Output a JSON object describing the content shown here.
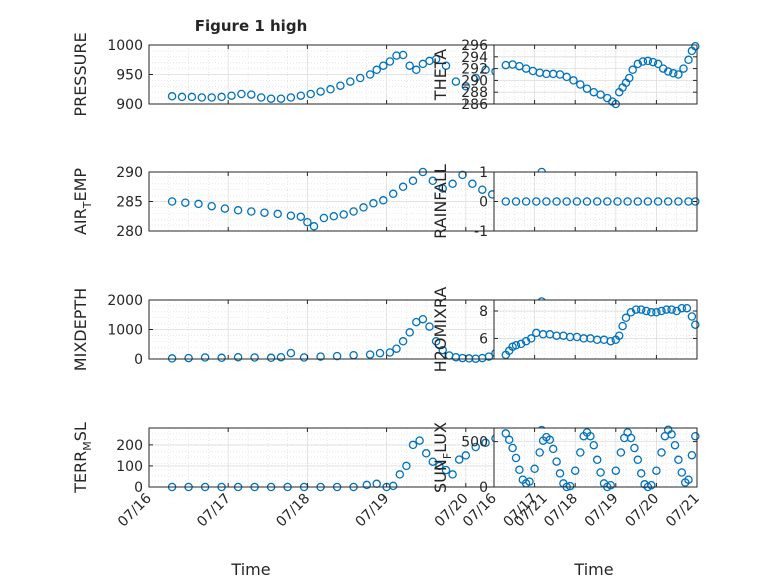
{
  "figure": {
    "title": "Figure 1 high",
    "marker_color": "#0072BD"
  },
  "chart_data": [
    {
      "id": "pressure",
      "type": "scatter",
      "ylabel": "PRESSURE",
      "grid": true,
      "xlim": [
        "07/16",
        "07/21"
      ],
      "xticks": [
        "07/16",
        "07/17",
        "07/18",
        "07/19",
        "07/20",
        "07/21"
      ],
      "ylim": [
        900,
        1000
      ],
      "yticks": [
        900,
        950,
        1000
      ],
      "x": [
        "07/16 07:00",
        "07/16 10:00",
        "07/16 13:00",
        "07/16 16:00",
        "07/16 19:00",
        "07/16 22:00",
        "07/17 01:00",
        "07/17 04:00",
        "07/17 07:00",
        "07/17 10:00",
        "07/17 13:00",
        "07/17 16:00",
        "07/17 19:00",
        "07/17 22:00",
        "07/18 01:00",
        "07/18 04:00",
        "07/18 07:00",
        "07/18 10:00",
        "07/18 13:00",
        "07/18 16:00",
        "07/18 19:00",
        "07/18 21:00",
        "07/18 23:00",
        "07/19 01:00",
        "07/19 03:00",
        "07/19 05:00",
        "07/19 07:00",
        "07/19 09:00",
        "07/19 11:00",
        "07/19 13:00",
        "07/19 15:00",
        "07/19 18:00",
        "07/19 21:00",
        "07/20 00:00",
        "07/20 03:00",
        "07/20 06:00",
        "07/20 09:00",
        "07/20 12:00",
        "07/20 15:00",
        "07/20 18:00",
        "07/20 21:00"
      ],
      "y": [
        913,
        912,
        912,
        911,
        911,
        912,
        914,
        917,
        916,
        911,
        909,
        909,
        911,
        914,
        917,
        921,
        925,
        931,
        938,
        944,
        950,
        958,
        965,
        972,
        982,
        983,
        965,
        958,
        968,
        973,
        976,
        965,
        938,
        930,
        944,
        958,
        955,
        946,
        938,
        935,
        930
      ]
    },
    {
      "id": "theta",
      "type": "scatter",
      "ylabel": "THETA",
      "grid": true,
      "xlim": [
        "07/16",
        "07/21"
      ],
      "xticks": [
        "07/16",
        "07/17",
        "07/18",
        "07/19",
        "07/20",
        "07/21"
      ],
      "ylim": [
        286,
        296
      ],
      "yticks": [
        286,
        288,
        290,
        292,
        294,
        296
      ],
      "x": [
        "07/16 07:00",
        "07/16 11:00",
        "07/16 15:00",
        "07/16 19:00",
        "07/16 23:00",
        "07/17 03:00",
        "07/17 07:00",
        "07/17 11:00",
        "07/17 15:00",
        "07/17 19:00",
        "07/17 23:00",
        "07/18 03:00",
        "07/18 07:00",
        "07/18 11:00",
        "07/18 15:00",
        "07/18 19:00",
        "07/18 22:00",
        "07/19 00:00",
        "07/19 02:00",
        "07/19 04:00",
        "07/19 06:00",
        "07/19 08:00",
        "07/19 10:00",
        "07/19 13:00",
        "07/19 16:00",
        "07/19 19:00",
        "07/19 22:00",
        "07/20 01:00",
        "07/20 04:00",
        "07/20 07:00",
        "07/20 10:00",
        "07/20 13:00",
        "07/20 16:00",
        "07/20 19:00",
        "07/20 21:00",
        "07/20 23:00"
      ],
      "y": [
        292.6,
        292.7,
        292.4,
        292.0,
        291.6,
        291.3,
        291.1,
        291.1,
        291.0,
        290.6,
        290.0,
        289.3,
        288.6,
        288.0,
        287.6,
        287.0,
        286.4,
        286.0,
        288.0,
        288.8,
        289.6,
        290.4,
        291.8,
        292.8,
        293.2,
        293.3,
        293.1,
        292.8,
        292.0,
        291.5,
        291.2,
        291.0,
        292.0,
        293.5,
        295.0,
        295.8
      ]
    },
    {
      "id": "air_temp",
      "type": "scatter",
      "ylabel": "AIR_TEMP",
      "ylabel_parts": [
        "AIR",
        "T",
        "EMP"
      ],
      "grid": true,
      "xlim": [
        "07/16",
        "07/21"
      ],
      "xticks": [
        "07/16",
        "07/17",
        "07/18",
        "07/19",
        "07/20",
        "07/21"
      ],
      "ylim": [
        280,
        290
      ],
      "yticks": [
        280,
        285,
        290
      ],
      "x": [
        "07/16 07:00",
        "07/16 11:00",
        "07/16 15:00",
        "07/16 19:00",
        "07/16 23:00",
        "07/17 03:00",
        "07/17 07:00",
        "07/17 11:00",
        "07/17 15:00",
        "07/17 19:00",
        "07/17 22:00",
        "07/18 00:00",
        "07/18 02:00",
        "07/18 05:00",
        "07/18 08:00",
        "07/18 11:00",
        "07/18 14:00",
        "07/18 17:00",
        "07/18 20:00",
        "07/18 23:00",
        "07/19 02:00",
        "07/19 05:00",
        "07/19 08:00",
        "07/19 11:00",
        "07/19 14:00",
        "07/19 17:00",
        "07/19 20:00",
        "07/19 23:00",
        "07/20 02:00",
        "07/20 05:00",
        "07/20 08:00",
        "07/20 11:00",
        "07/20 14:00",
        "07/20 17:00",
        "07/20 20:00",
        "07/20 23:00"
      ],
      "y": [
        285.0,
        284.8,
        284.6,
        284.2,
        283.8,
        283.5,
        283.3,
        283.1,
        282.9,
        282.6,
        282.4,
        281.5,
        280.8,
        282.2,
        282.5,
        282.8,
        283.3,
        284.0,
        284.7,
        285.2,
        286.3,
        287.5,
        288.5,
        290.0,
        288.5,
        287.2,
        288.0,
        289.5,
        288.0,
        287.0,
        286.2,
        285.8,
        286.5,
        288.0,
        289.3,
        290.0
      ]
    },
    {
      "id": "rainfall",
      "type": "scatter",
      "ylabel": "RAINFALL",
      "grid": true,
      "xlim": [
        "07/16",
        "07/21"
      ],
      "xticks": [
        "07/16",
        "07/17",
        "07/18",
        "07/19",
        "07/20",
        "07/21"
      ],
      "ylim": [
        -1,
        1
      ],
      "yticks": [
        -1,
        0,
        1
      ],
      "x": [
        "07/16 07:00",
        "07/16 13:00",
        "07/16 19:00",
        "07/17 01:00",
        "07/17 07:00",
        "07/17 13:00",
        "07/17 19:00",
        "07/18 01:00",
        "07/18 07:00",
        "07/18 13:00",
        "07/18 19:00",
        "07/19 01:00",
        "07/19 07:00",
        "07/19 13:00",
        "07/19 19:00",
        "07/20 01:00",
        "07/20 07:00",
        "07/20 13:00",
        "07/20 19:00",
        "07/20 23:00"
      ],
      "y": [
        0,
        0,
        0,
        0,
        0,
        0,
        0,
        0,
        0,
        0,
        0,
        0,
        0,
        0,
        0,
        0,
        0,
        0,
        0,
        0
      ]
    },
    {
      "id": "mixdepth",
      "type": "scatter",
      "ylabel": "MIXDEPTH",
      "grid": true,
      "xlim": [
        "07/16",
        "07/21"
      ],
      "xticks": [
        "07/16",
        "07/17",
        "07/18",
        "07/19",
        "07/20",
        "07/21"
      ],
      "ylim": [
        0,
        2000
      ],
      "yticks": [
        0,
        1000,
        2000
      ],
      "x": [
        "07/16 07:00",
        "07/16 12:00",
        "07/16 17:00",
        "07/16 22:00",
        "07/17 03:00",
        "07/17 08:00",
        "07/17 13:00",
        "07/17 16:00",
        "07/17 19:00",
        "07/17 23:00",
        "07/18 04:00",
        "07/18 09:00",
        "07/18 14:00",
        "07/18 19:00",
        "07/18 22:00",
        "07/19 01:00",
        "07/19 03:00",
        "07/19 05:00",
        "07/19 07:00",
        "07/19 09:00",
        "07/19 11:00",
        "07/19 13:00",
        "07/19 15:00",
        "07/19 17:00",
        "07/19 19:00",
        "07/19 21:00",
        "07/19 23:00",
        "07/20 01:00",
        "07/20 03:00",
        "07/20 05:00",
        "07/20 07:00",
        "07/20 09:00",
        "07/20 11:00",
        "07/20 13:00",
        "07/20 15:00",
        "07/20 17:00",
        "07/20 19:00",
        "07/20 21:00",
        "07/20 23:00"
      ],
      "y": [
        20,
        30,
        50,
        40,
        60,
        50,
        40,
        60,
        200,
        50,
        80,
        100,
        130,
        150,
        200,
        220,
        350,
        600,
        900,
        1250,
        1350,
        1100,
        600,
        300,
        120,
        60,
        30,
        20,
        10,
        30,
        80,
        200,
        400,
        700,
        1000,
        1300,
        1600,
        1800,
        1950
      ]
    },
    {
      "id": "h2omixra",
      "type": "scatter",
      "ylabel": "H2OMIXRA",
      "grid": true,
      "xlim": [
        "07/16",
        "07/21"
      ],
      "xticks": [
        "07/16",
        "07/17",
        "07/18",
        "07/19",
        "07/20",
        "07/21"
      ],
      "ylim": [
        4.5,
        8.8
      ],
      "yticks": [
        6,
        8
      ],
      "x": [
        "07/16 07:00",
        "07/16 09:00",
        "07/16 11:00",
        "07/16 13:00",
        "07/16 16:00",
        "07/16 19:00",
        "07/16 22:00",
        "07/17 01:00",
        "07/17 05:00",
        "07/17 09:00",
        "07/17 13:00",
        "07/17 17:00",
        "07/17 21:00",
        "07/18 01:00",
        "07/18 05:00",
        "07/18 09:00",
        "07/18 13:00",
        "07/18 17:00",
        "07/18 21:00",
        "07/19 00:00",
        "07/19 02:00",
        "07/19 04:00",
        "07/19 06:00",
        "07/19 09:00",
        "07/19 12:00",
        "07/19 15:00",
        "07/19 18:00",
        "07/19 21:00",
        "07/20 00:00",
        "07/20 03:00",
        "07/20 06:00",
        "07/20 09:00",
        "07/20 12:00",
        "07/20 15:00",
        "07/20 18:00",
        "07/20 21:00",
        "07/20 23:00"
      ],
      "y": [
        4.8,
        5.1,
        5.4,
        5.5,
        5.6,
        5.8,
        6.0,
        6.4,
        6.3,
        6.3,
        6.2,
        6.2,
        6.1,
        6.1,
        6.0,
        6.0,
        5.9,
        5.9,
        5.8,
        5.9,
        6.2,
        6.9,
        7.5,
        7.9,
        8.1,
        8.1,
        8.0,
        7.9,
        7.9,
        8.0,
        8.1,
        8.1,
        8.0,
        8.2,
        8.2,
        7.6,
        7.0
      ]
    },
    {
      "id": "terr_msl",
      "type": "scatter",
      "ylabel": "TERR_MSL",
      "ylabel_parts": [
        "TERR",
        "M",
        "SL"
      ],
      "grid": true,
      "xlim": [
        "07/16",
        "07/21"
      ],
      "xticks": [
        "07/16",
        "07/17",
        "07/18",
        "07/19",
        "07/20",
        "07/21"
      ],
      "ylim": [
        0,
        280
      ],
      "yticks": [
        0,
        100,
        200
      ],
      "x": [
        "07/16 07:00",
        "07/16 12:00",
        "07/16 17:00",
        "07/16 22:00",
        "07/17 03:00",
        "07/17 08:00",
        "07/17 13:00",
        "07/17 18:00",
        "07/17 23:00",
        "07/18 04:00",
        "07/18 09:00",
        "07/18 14:00",
        "07/18 18:00",
        "07/18 21:00",
        "07/19 00:00",
        "07/19 02:00",
        "07/19 04:00",
        "07/19 06:00",
        "07/19 08:00",
        "07/19 10:00",
        "07/19 12:00",
        "07/19 14:00",
        "07/19 16:00",
        "07/19 18:00",
        "07/19 20:00",
        "07/19 22:00",
        "07/20 00:00",
        "07/20 03:00",
        "07/20 06:00",
        "07/20 09:00",
        "07/20 12:00",
        "07/20 15:00",
        "07/20 18:00",
        "07/20 21:00",
        "07/20 23:00"
      ],
      "y": [
        0,
        0,
        0,
        0,
        0,
        0,
        0,
        0,
        0,
        0,
        0,
        0,
        10,
        15,
        0,
        5,
        60,
        100,
        200,
        220,
        160,
        120,
        100,
        80,
        60,
        130,
        150,
        190,
        210,
        230,
        200,
        200,
        210,
        230,
        270
      ]
    },
    {
      "id": "sun_flux",
      "type": "scatter",
      "ylabel": "SUN_FLUX",
      "ylabel_parts": [
        "SUN",
        "F",
        "LUX"
      ],
      "grid": true,
      "xlim": [
        "07/16",
        "07/21"
      ],
      "xticks": [
        "07/16",
        "07/17",
        "07/18",
        "07/19",
        "07/20",
        "07/21"
      ],
      "ylim": [
        0,
        650
      ],
      "yticks": [
        0,
        500
      ],
      "x": [
        "07/16 07:00",
        "07/16 09:00",
        "07/16 11:00",
        "07/16 13:00",
        "07/16 15:00",
        "07/16 17:00",
        "07/16 19:00",
        "07/16 21:00",
        "07/17 00:00",
        "07/17 03:00",
        "07/17 05:00",
        "07/17 07:00",
        "07/17 09:00",
        "07/17 11:00",
        "07/17 13:00",
        "07/17 15:00",
        "07/17 17:00",
        "07/17 19:00",
        "07/17 21:00",
        "07/18 00:00",
        "07/18 03:00",
        "07/18 05:00",
        "07/18 07:00",
        "07/18 09:00",
        "07/18 11:00",
        "07/18 13:00",
        "07/18 15:00",
        "07/18 17:00",
        "07/18 19:00",
        "07/18 21:00",
        "07/19 00:00",
        "07/19 03:00",
        "07/19 05:00",
        "07/19 07:00",
        "07/19 09:00",
        "07/19 11:00",
        "07/19 13:00",
        "07/19 15:00",
        "07/19 17:00",
        "07/19 19:00",
        "07/19 21:00",
        "07/20 00:00",
        "07/20 03:00",
        "07/20 05:00",
        "07/20 07:00",
        "07/20 09:00",
        "07/20 11:00",
        "07/20 13:00",
        "07/20 15:00",
        "07/20 17:00",
        "07/20 19:00",
        "07/20 21:00",
        "07/20 23:00"
      ],
      "y": [
        590,
        520,
        430,
        320,
        190,
        80,
        40,
        60,
        200,
        380,
        510,
        550,
        520,
        420,
        280,
        150,
        40,
        0,
        10,
        180,
        380,
        560,
        600,
        560,
        460,
        300,
        160,
        40,
        0,
        20,
        180,
        380,
        540,
        600,
        540,
        430,
        300,
        150,
        30,
        0,
        20,
        180,
        380,
        560,
        630,
        580,
        460,
        300,
        160,
        50,
        80,
        350,
        560
      ]
    }
  ],
  "x_axis_label": "Time"
}
